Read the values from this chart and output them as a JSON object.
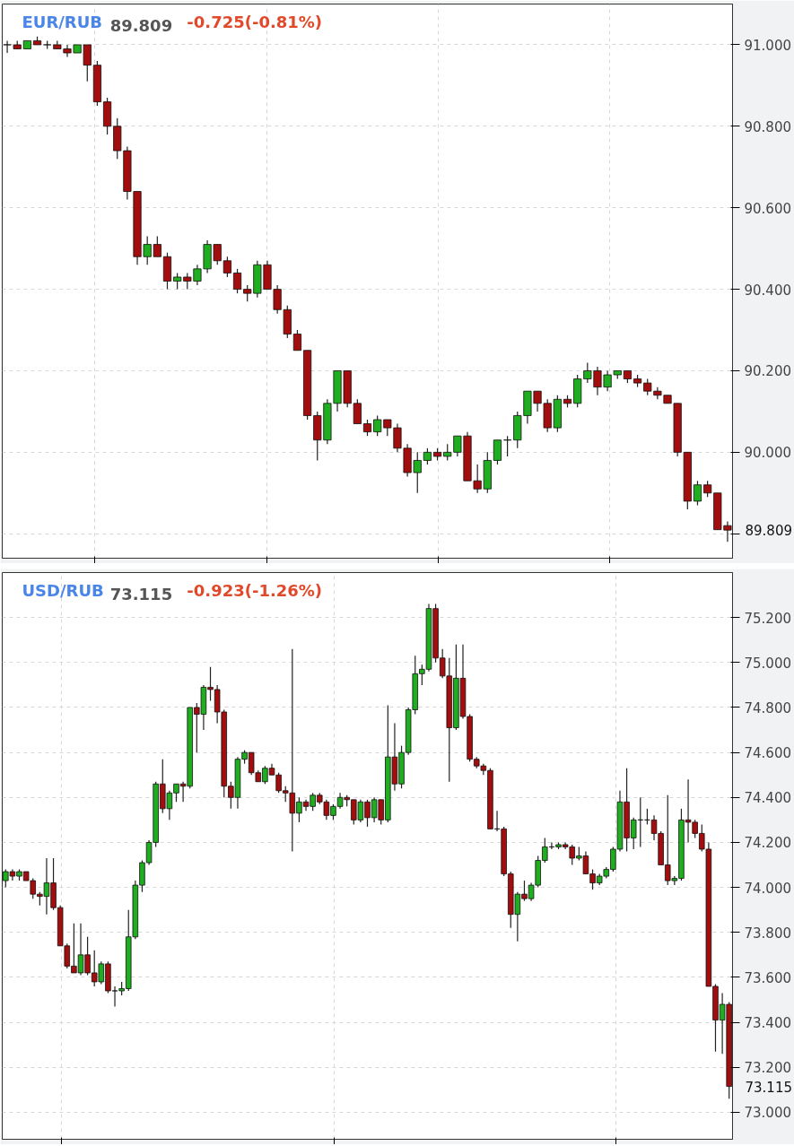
{
  "chart_data": [
    {
      "type": "candlestick",
      "title": "EUR/RUB",
      "subtitle": "89.809",
      "annotations": [
        "-0.725(-0.81%)",
        "89.809"
      ],
      "categories": [
        null,
        null,
        null,
        null,
        null,
        null,
        null,
        null,
        null,
        null,
        null,
        null,
        null,
        null,
        null,
        null,
        null,
        null,
        null,
        null,
        null,
        null,
        null,
        null,
        null,
        null,
        null,
        null,
        null,
        null,
        null,
        null,
        null,
        null,
        null,
        null,
        null,
        null,
        null,
        null,
        null,
        null,
        null,
        null,
        null,
        null,
        null,
        null,
        null,
        null,
        null,
        null,
        null,
        null,
        null,
        null,
        null,
        null,
        null,
        null,
        null,
        null,
        null,
        null,
        null,
        null,
        null,
        null,
        null,
        null,
        null,
        null,
        null
      ],
      "ohlc": [
        [
          91.0,
          91.01,
          90.98,
          91.0
        ],
        [
          91.0,
          91.01,
          90.99,
          90.99
        ],
        [
          90.99,
          91.01,
          90.99,
          91.01
        ],
        [
          91.01,
          91.02,
          91.0,
          91.0
        ],
        [
          91.0,
          91.01,
          90.99,
          91.0
        ],
        [
          91.0,
          91.01,
          90.99,
          90.99
        ],
        [
          90.99,
          91.0,
          90.97,
          90.98
        ],
        [
          90.98,
          91.0,
          90.98,
          91.0
        ],
        [
          91.0,
          91.0,
          90.91,
          90.95
        ],
        [
          90.95,
          90.96,
          90.85,
          90.86
        ],
        [
          90.86,
          90.87,
          90.78,
          90.8
        ],
        [
          90.8,
          90.82,
          90.72,
          90.74
        ],
        [
          90.74,
          90.75,
          90.62,
          90.64
        ],
        [
          90.64,
          90.64,
          90.46,
          90.48
        ],
        [
          90.48,
          90.53,
          90.46,
          90.51
        ],
        [
          90.51,
          90.53,
          90.48,
          90.48
        ],
        [
          90.48,
          90.49,
          90.4,
          90.42
        ],
        [
          90.42,
          90.44,
          90.4,
          90.43
        ],
        [
          90.43,
          90.44,
          90.4,
          90.42
        ],
        [
          90.42,
          90.46,
          90.41,
          90.45
        ],
        [
          90.45,
          90.52,
          90.44,
          90.51
        ],
        [
          90.51,
          90.51,
          90.46,
          90.47
        ],
        [
          90.47,
          90.48,
          90.43,
          90.44
        ],
        [
          90.44,
          90.45,
          90.39,
          90.4
        ],
        [
          90.4,
          90.41,
          90.37,
          90.39
        ],
        [
          90.39,
          90.47,
          90.38,
          90.46
        ],
        [
          90.46,
          90.47,
          90.4,
          90.4
        ],
        [
          90.4,
          90.41,
          90.34,
          90.35
        ],
        [
          90.35,
          90.36,
          90.28,
          90.29
        ],
        [
          90.29,
          90.3,
          90.25,
          90.25
        ],
        [
          90.25,
          90.25,
          90.08,
          90.09
        ],
        [
          90.09,
          90.1,
          89.98,
          90.03
        ],
        [
          90.03,
          90.13,
          90.02,
          90.12
        ],
        [
          90.12,
          90.2,
          90.1,
          90.2
        ],
        [
          90.2,
          90.2,
          90.11,
          90.12
        ],
        [
          90.12,
          90.13,
          90.07,
          90.07
        ],
        [
          90.07,
          90.08,
          90.04,
          90.05
        ],
        [
          90.05,
          90.09,
          90.04,
          90.08
        ],
        [
          90.08,
          90.08,
          90.04,
          90.06
        ],
        [
          90.06,
          90.07,
          90.0,
          90.01
        ],
        [
          90.01,
          90.02,
          89.94,
          89.95
        ],
        [
          89.95,
          90.0,
          89.9,
          89.98
        ],
        [
          89.98,
          90.01,
          89.97,
          90.0
        ],
        [
          90.0,
          90.01,
          89.98,
          89.99
        ],
        [
          89.99,
          90.02,
          89.98,
          90.0
        ],
        [
          90.0,
          90.04,
          89.99,
          90.04
        ],
        [
          90.04,
          90.05,
          89.93,
          89.93
        ],
        [
          89.93,
          89.97,
          89.9,
          89.91
        ],
        [
          89.91,
          90.0,
          89.9,
          89.98
        ],
        [
          89.98,
          90.03,
          89.97,
          90.03
        ],
        [
          90.03,
          90.04,
          89.99,
          90.03
        ],
        [
          90.03,
          90.1,
          90.01,
          90.09
        ],
        [
          90.09,
          90.15,
          90.07,
          90.15
        ],
        [
          90.15,
          90.15,
          90.1,
          90.12
        ],
        [
          90.12,
          90.13,
          90.05,
          90.06
        ],
        [
          90.06,
          90.14,
          90.05,
          90.13
        ],
        [
          90.13,
          90.14,
          90.11,
          90.12
        ],
        [
          90.12,
          90.19,
          90.11,
          90.18
        ],
        [
          90.18,
          90.22,
          90.17,
          90.2
        ],
        [
          90.2,
          90.21,
          90.14,
          90.16
        ],
        [
          90.16,
          90.2,
          90.15,
          90.19
        ],
        [
          90.19,
          90.2,
          90.18,
          90.2
        ],
        [
          90.2,
          90.2,
          90.17,
          90.18
        ],
        [
          90.18,
          90.19,
          90.16,
          90.17
        ],
        [
          90.17,
          90.18,
          90.14,
          90.15
        ],
        [
          90.15,
          90.16,
          90.13,
          90.14
        ],
        [
          90.14,
          90.14,
          90.12,
          90.12
        ],
        [
          90.12,
          90.12,
          89.99,
          90.0
        ],
        [
          90.0,
          90.0,
          89.86,
          89.88
        ],
        [
          89.88,
          89.93,
          89.87,
          89.92
        ],
        [
          89.92,
          89.93,
          89.89,
          89.9
        ],
        [
          89.9,
          89.9,
          89.81,
          89.81
        ],
        [
          89.82,
          89.83,
          89.78,
          89.809
        ]
      ],
      "ylim": [
        89.74,
        91.1
      ],
      "yticks": [
        {
          "value": 89.8,
          "label": null
        },
        {
          "value": 90.0,
          "label": "90.000"
        },
        {
          "value": 90.2,
          "label": "90.200"
        },
        {
          "value": 90.4,
          "label": "90.400"
        },
        {
          "value": 90.6,
          "label": "90.600"
        },
        {
          "value": 90.8,
          "label": "90.800"
        },
        {
          "value": 91.0,
          "label": "91.000"
        }
      ],
      "grid": true,
      "tick_labels": "y"
    },
    {
      "type": "candlestick",
      "title": "USD/RUB",
      "subtitle": "73.115",
      "annotations": [
        "-0.923(-1.26%)",
        "73.115"
      ],
      "categories": [
        null,
        null,
        null,
        null,
        null,
        null,
        null,
        null,
        null,
        null,
        null,
        null,
        null,
        null,
        null,
        null,
        null,
        null,
        null,
        null,
        null,
        null,
        null,
        null,
        null,
        null,
        null,
        null,
        null,
        null,
        null,
        null,
        null,
        null,
        null,
        null,
        null,
        null,
        null,
        null,
        null,
        null,
        null,
        null,
        null,
        null,
        null,
        null,
        null,
        null,
        null,
        null,
        null,
        null,
        null,
        null,
        null,
        null,
        null,
        null,
        null,
        null,
        null,
        null,
        null,
        null,
        null,
        null,
        null,
        null,
        null,
        null,
        null,
        null,
        null,
        null,
        null,
        null,
        null,
        null,
        null,
        null,
        null,
        null,
        null,
        null,
        null,
        null,
        null,
        null,
        null,
        null,
        null,
        null,
        null,
        null,
        null,
        null,
        null,
        null,
        null,
        null,
        null,
        null,
        null,
        null,
        null
      ],
      "ohlc": [
        [
          74.03,
          74.08,
          74.0,
          74.07
        ],
        [
          74.07,
          74.08,
          74.03,
          74.05
        ],
        [
          74.05,
          74.08,
          74.03,
          74.07
        ],
        [
          74.07,
          74.07,
          74.03,
          74.03
        ],
        [
          74.03,
          74.04,
          73.95,
          73.97
        ],
        [
          73.97,
          73.98,
          73.92,
          73.96
        ],
        [
          73.96,
          74.13,
          73.88,
          74.02
        ],
        [
          74.02,
          74.13,
          73.9,
          73.91
        ],
        [
          73.91,
          73.92,
          73.74,
          73.74
        ],
        [
          73.74,
          73.75,
          73.64,
          73.65
        ],
        [
          73.65,
          73.84,
          73.62,
          73.62
        ],
        [
          73.62,
          73.84,
          73.61,
          73.7
        ],
        [
          73.7,
          73.78,
          73.61,
          73.62
        ],
        [
          73.62,
          73.72,
          73.56,
          73.58
        ],
        [
          73.58,
          73.67,
          73.57,
          73.66
        ],
        [
          73.66,
          73.67,
          73.53,
          73.54
        ],
        [
          73.54,
          73.56,
          73.47,
          73.54
        ],
        [
          73.54,
          73.58,
          73.52,
          73.55
        ],
        [
          73.55,
          73.9,
          73.54,
          73.78
        ],
        [
          73.78,
          74.03,
          73.77,
          74.01
        ],
        [
          74.01,
          74.12,
          73.98,
          74.11
        ],
        [
          74.11,
          74.21,
          74.1,
          74.2
        ],
        [
          74.2,
          74.47,
          74.18,
          74.46
        ],
        [
          74.46,
          74.57,
          74.33,
          74.35
        ],
        [
          74.35,
          74.43,
          74.3,
          74.42
        ],
        [
          74.42,
          74.46,
          74.38,
          74.46
        ],
        [
          74.46,
          74.47,
          74.38,
          74.45
        ],
        [
          74.45,
          74.8,
          74.44,
          74.8
        ],
        [
          74.8,
          74.82,
          74.6,
          74.77
        ],
        [
          74.77,
          74.9,
          74.7,
          74.89
        ],
        [
          74.89,
          74.98,
          74.83,
          74.88
        ],
        [
          74.88,
          74.9,
          74.73,
          74.78
        ],
        [
          74.78,
          74.79,
          74.4,
          74.45
        ],
        [
          74.45,
          74.47,
          74.35,
          74.4
        ],
        [
          74.4,
          74.58,
          74.35,
          74.57
        ],
        [
          74.57,
          74.61,
          74.55,
          74.6
        ],
        [
          74.6,
          74.6,
          74.5,
          74.51
        ],
        [
          74.51,
          74.52,
          74.47,
          74.47
        ],
        [
          74.47,
          74.54,
          74.46,
          74.53
        ],
        [
          74.53,
          74.55,
          74.5,
          74.5
        ],
        [
          74.5,
          74.51,
          74.42,
          74.43
        ],
        [
          74.43,
          74.45,
          74.38,
          74.42
        ],
        [
          74.42,
          75.06,
          74.16,
          74.33
        ],
        [
          74.33,
          74.4,
          74.29,
          74.38
        ],
        [
          74.38,
          74.39,
          74.34,
          74.36
        ],
        [
          74.36,
          74.42,
          74.34,
          74.41
        ],
        [
          74.41,
          74.42,
          74.37,
          74.38
        ],
        [
          74.38,
          74.39,
          74.3,
          74.32
        ],
        [
          74.32,
          74.37,
          74.3,
          74.36
        ],
        [
          74.36,
          74.42,
          74.35,
          74.4
        ],
        [
          74.4,
          74.41,
          74.36,
          74.39
        ],
        [
          74.39,
          74.39,
          74.28,
          74.3
        ],
        [
          74.3,
          74.39,
          74.29,
          74.38
        ],
        [
          74.38,
          74.39,
          74.27,
          74.31
        ],
        [
          74.31,
          74.4,
          74.29,
          74.39
        ],
        [
          74.39,
          74.39,
          74.28,
          74.3
        ],
        [
          74.3,
          74.81,
          74.29,
          74.58
        ],
        [
          74.58,
          74.73,
          74.43,
          74.46
        ],
        [
          74.46,
          74.63,
          74.44,
          74.6
        ],
        [
          74.6,
          74.8,
          74.59,
          74.79
        ],
        [
          74.79,
          75.03,
          74.77,
          74.95
        ],
        [
          74.95,
          74.99,
          74.9,
          74.97
        ],
        [
          74.97,
          75.26,
          74.96,
          75.24
        ],
        [
          75.24,
          75.26,
          75.0,
          75.02
        ],
        [
          75.02,
          75.06,
          74.93,
          74.94
        ],
        [
          74.94,
          75.02,
          74.47,
          74.71
        ],
        [
          74.71,
          75.08,
          74.7,
          74.93
        ],
        [
          74.93,
          75.08,
          74.75,
          74.76
        ],
        [
          74.76,
          74.77,
          74.56,
          74.57
        ],
        [
          74.57,
          74.58,
          74.53,
          74.54
        ],
        [
          74.54,
          74.55,
          74.5,
          74.52
        ],
        [
          74.52,
          74.53,
          74.26,
          74.26
        ],
        [
          74.26,
          74.34,
          74.25,
          74.26
        ],
        [
          74.26,
          74.27,
          74.05,
          74.06
        ],
        [
          74.06,
          74.07,
          73.82,
          73.88
        ],
        [
          73.88,
          73.98,
          73.76,
          73.97
        ],
        [
          73.97,
          74.03,
          73.94,
          73.95
        ],
        [
          73.95,
          74.02,
          73.94,
          74.01
        ],
        [
          74.01,
          74.14,
          74.0,
          74.12
        ],
        [
          74.12,
          74.22,
          74.11,
          74.18
        ],
        [
          74.18,
          74.2,
          74.17,
          74.18
        ],
        [
          74.18,
          74.2,
          74.17,
          74.19
        ],
        [
          74.19,
          74.2,
          74.17,
          74.18
        ],
        [
          74.18,
          74.19,
          74.1,
          74.13
        ],
        [
          74.13,
          74.18,
          74.12,
          74.14
        ],
        [
          74.14,
          74.16,
          74.06,
          74.06
        ],
        [
          74.06,
          74.08,
          73.99,
          74.02
        ],
        [
          74.02,
          74.06,
          74.01,
          74.05
        ],
        [
          74.05,
          74.09,
          74.04,
          74.08
        ],
        [
          74.08,
          74.18,
          74.07,
          74.17
        ],
        [
          74.17,
          74.43,
          74.16,
          74.38
        ],
        [
          74.38,
          74.53,
          74.16,
          74.22
        ],
        [
          74.22,
          74.31,
          74.17,
          74.3
        ],
        [
          74.3,
          74.4,
          74.18,
          74.3
        ],
        [
          74.3,
          74.35,
          74.28,
          74.3
        ],
        [
          74.3,
          74.32,
          74.21,
          74.24
        ],
        [
          74.24,
          74.25,
          74.1,
          74.1
        ],
        [
          74.1,
          74.41,
          74.01,
          74.03
        ],
        [
          74.03,
          74.05,
          74.01,
          74.04
        ],
        [
          74.04,
          74.35,
          74.03,
          74.3
        ],
        [
          74.3,
          74.48,
          74.2,
          74.29
        ],
        [
          74.29,
          74.3,
          74.22,
          74.24
        ],
        [
          74.24,
          74.28,
          74.16,
          74.17
        ],
        [
          74.17,
          74.2,
          73.56,
          73.56
        ],
        [
          73.56,
          73.57,
          73.27,
          73.41
        ],
        [
          73.41,
          73.53,
          73.26,
          73.48
        ],
        [
          73.48,
          73.49,
          73.06,
          73.115
        ]
      ],
      "ylim": [
        72.88,
        75.4
      ],
      "yticks": [
        {
          "value": 73.0,
          "label": "73.000"
        },
        {
          "value": 73.2,
          "label": "73.200"
        },
        {
          "value": 73.4,
          "label": "73.400"
        },
        {
          "value": 73.6,
          "label": "73.600"
        },
        {
          "value": 73.8,
          "label": "73.800"
        },
        {
          "value": 74.0,
          "label": "74.000"
        },
        {
          "value": 74.2,
          "label": "74.200"
        },
        {
          "value": 74.4,
          "label": "74.400"
        },
        {
          "value": 74.6,
          "label": "74.600"
        },
        {
          "value": 74.8,
          "label": "74.800"
        },
        {
          "value": 75.0,
          "label": "75.000"
        },
        {
          "value": 75.2,
          "label": "75.200"
        }
      ],
      "grid": true,
      "tick_labels": "y"
    }
  ]
}
